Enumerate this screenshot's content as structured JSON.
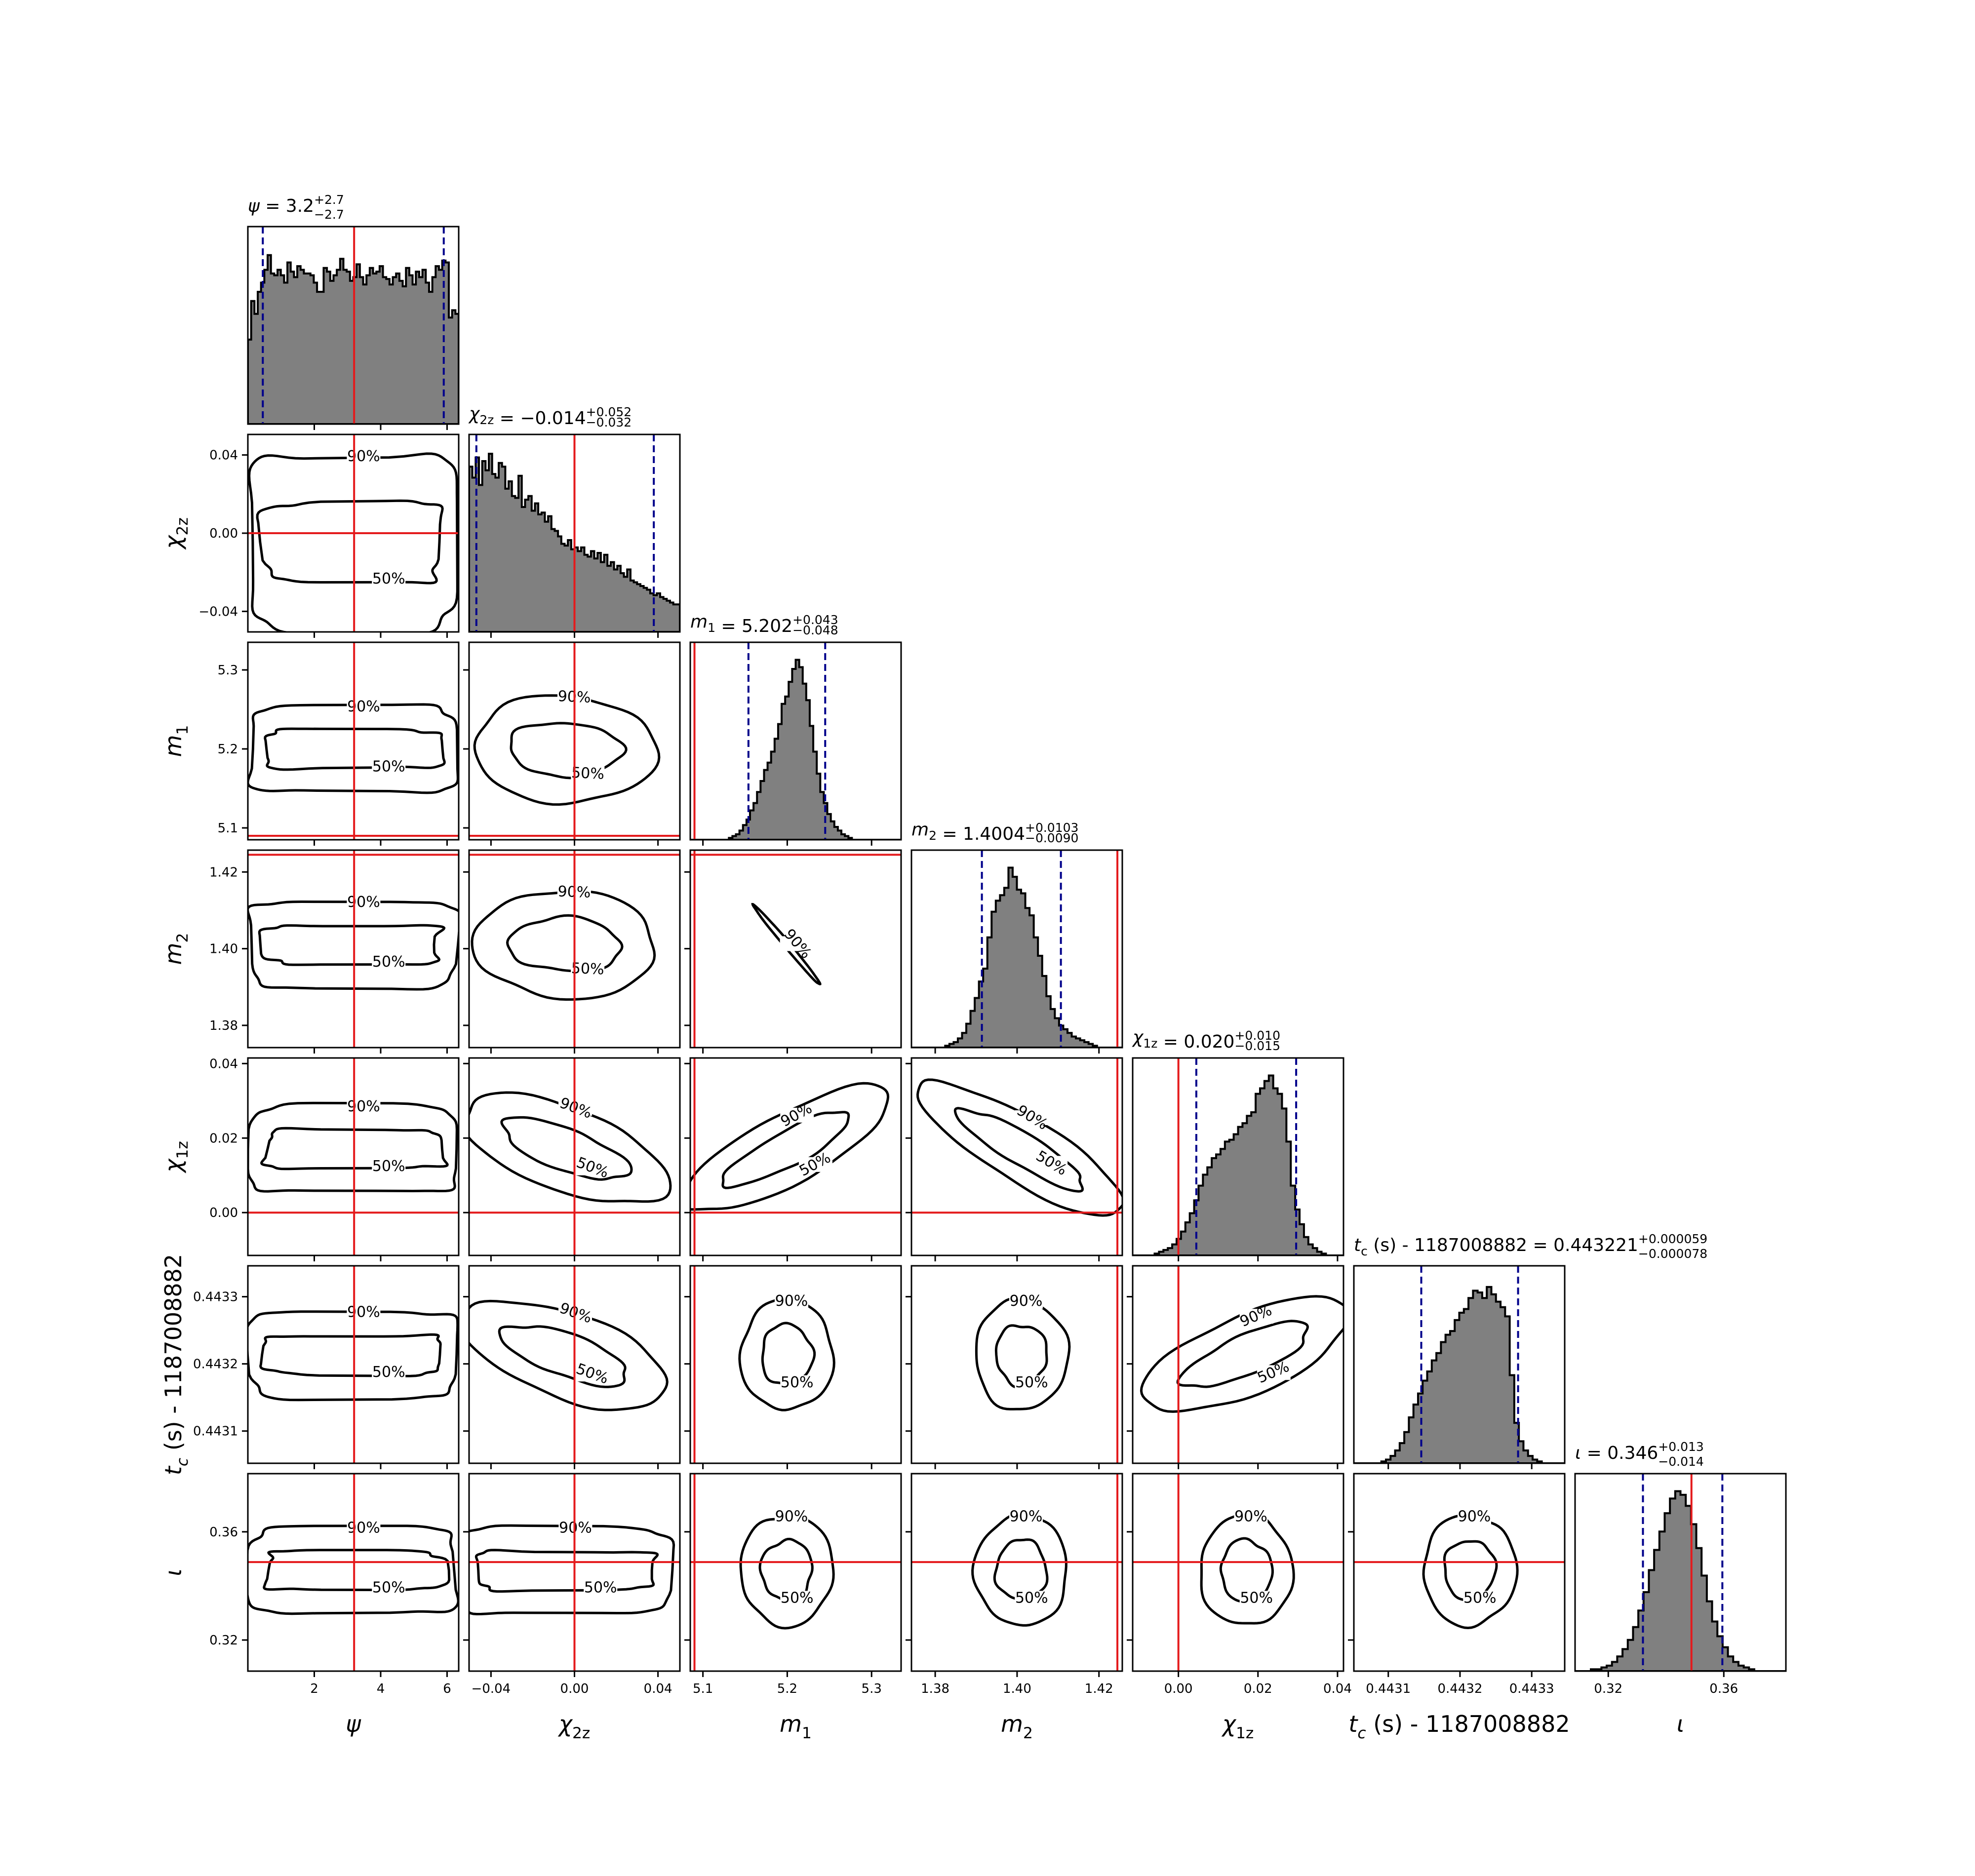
{
  "chart_data": {
    "type": "corner",
    "contour_levels": [
      "50%",
      "90%"
    ],
    "params": [
      {
        "key": "psi",
        "axis_label": "ψ",
        "title": {
          "lhs": "ψ",
          "eq": " = ",
          "value": "3.2",
          "plus": "+2.7",
          "minus": "−2.7"
        },
        "range": [
          0.0,
          6.35
        ],
        "ticks": [
          2,
          4,
          6
        ],
        "tick_labels": [
          "2",
          "4",
          "6"
        ],
        "injection": 3.2,
        "interval": [
          0.45,
          5.9
        ],
        "hist_values": [
          0.46,
          0.67,
          0.6,
          0.72,
          0.77,
          0.84,
          0.92,
          0.82,
          0.81,
          0.84,
          0.81,
          0.77,
          0.88,
          0.83,
          0.8,
          0.86,
          0.84,
          0.82,
          0.82,
          0.81,
          0.77,
          0.72,
          0.72,
          0.85,
          0.83,
          0.78,
          0.81,
          0.84,
          0.9,
          0.84,
          0.83,
          0.78,
          0.8,
          0.87,
          0.8,
          0.76,
          0.81,
          0.85,
          0.82,
          0.83,
          0.86,
          0.8,
          0.79,
          0.76,
          0.8,
          0.82,
          0.78,
          0.75,
          0.85,
          0.81,
          0.76,
          0.83,
          0.8,
          0.84,
          0.77,
          0.72,
          0.8,
          0.86,
          0.84,
          0.89,
          0.88,
          0.58,
          0.62,
          0.6
        ]
      },
      {
        "key": "chi2z",
        "axis_label": "χ2z",
        "title": {
          "lhs": "χ2z",
          "eq": " = ",
          "value": "−0.014",
          "plus": "+0.052",
          "minus": "−0.032"
        },
        "range": [
          -0.0505,
          0.0505
        ],
        "ticks": [
          -0.04,
          0.0,
          0.04
        ],
        "tick_labels": [
          "−0.04",
          "0.00",
          "0.04"
        ],
        "injection": 0.0,
        "interval": [
          -0.047,
          0.038
        ],
        "hist_values": [
          0.9,
          0.84,
          0.95,
          0.8,
          0.93,
          0.88,
          0.97,
          0.86,
          0.84,
          0.92,
          0.9,
          0.78,
          0.82,
          0.74,
          0.73,
          0.85,
          0.68,
          0.72,
          0.74,
          0.66,
          0.7,
          0.64,
          0.65,
          0.6,
          0.63,
          0.56,
          0.55,
          0.52,
          0.48,
          0.47,
          0.5,
          0.45,
          0.46,
          0.44,
          0.46,
          0.42,
          0.41,
          0.44,
          0.4,
          0.43,
          0.38,
          0.42,
          0.36,
          0.38,
          0.34,
          0.36,
          0.32,
          0.3,
          0.34,
          0.28,
          0.27,
          0.26,
          0.25,
          0.24,
          0.23,
          0.21,
          0.2,
          0.21,
          0.19,
          0.18,
          0.17,
          0.16,
          0.15,
          0.15
        ]
      },
      {
        "key": "m1",
        "axis_label": "m1",
        "title": {
          "lhs": "m1",
          "eq": " = ",
          "value": "5.202",
          "plus": "+0.043",
          "minus": "−0.048"
        },
        "range": [
          5.085,
          5.335
        ],
        "ticks": [
          5.1,
          5.2,
          5.3
        ],
        "tick_labels": [
          "5.1",
          "5.2",
          "5.3"
        ],
        "injection": 5.09,
        "interval": [
          5.154,
          5.245
        ],
        "hist_values": [
          0.0,
          0.0,
          0.0,
          0.0,
          0.0,
          0.0,
          0.0,
          0.0,
          0.0,
          0.0,
          0.0,
          0.01,
          0.02,
          0.03,
          0.05,
          0.08,
          0.11,
          0.16,
          0.2,
          0.26,
          0.32,
          0.38,
          0.42,
          0.48,
          0.55,
          0.63,
          0.74,
          0.78,
          0.86,
          0.93,
          0.98,
          0.94,
          0.85,
          0.76,
          0.62,
          0.48,
          0.36,
          0.26,
          0.2,
          0.14,
          0.1,
          0.07,
          0.05,
          0.03,
          0.02,
          0.01,
          0.0,
          0.0,
          0.0,
          0.0,
          0.0,
          0.0,
          0.0,
          0.0,
          0.0,
          0.0,
          0.0,
          0.0,
          0.0,
          0.0
        ]
      },
      {
        "key": "m2",
        "axis_label": "m2",
        "title": {
          "lhs": "m2",
          "eq": " = ",
          "value": "1.4004",
          "plus": "+0.0103",
          "minus": "−0.0090"
        },
        "range": [
          1.3742,
          1.4257
        ],
        "ticks": [
          1.38,
          1.4,
          1.42
        ],
        "tick_labels": [
          "1.38",
          "1.40",
          "1.42"
        ],
        "injection": 1.4245,
        "interval": [
          1.3914,
          1.4107
        ],
        "hist_values": [
          0.0,
          0.0,
          0.0,
          0.0,
          0.0,
          0.0,
          0.0,
          0.0,
          0.01,
          0.02,
          0.03,
          0.05,
          0.08,
          0.13,
          0.2,
          0.27,
          0.36,
          0.43,
          0.6,
          0.74,
          0.8,
          0.83,
          0.87,
          0.98,
          0.93,
          0.86,
          0.84,
          0.76,
          0.72,
          0.6,
          0.5,
          0.39,
          0.28,
          0.21,
          0.16,
          0.12,
          0.1,
          0.08,
          0.06,
          0.05,
          0.04,
          0.03,
          0.02,
          0.01,
          0.0,
          0.0,
          0.0,
          0.0,
          0.0,
          0.0
        ]
      },
      {
        "key": "chi1z",
        "axis_label": "χ1z",
        "title": {
          "lhs": "χ1z",
          "eq": " = ",
          "value": "0.020",
          "plus": "+0.010",
          "minus": "−0.015"
        },
        "range": [
          -0.0115,
          0.0415
        ],
        "ticks": [
          0.0,
          0.02,
          0.04
        ],
        "tick_labels": [
          "0.00",
          "0.02",
          "0.04"
        ],
        "injection": 0.0,
        "interval": [
          0.0045,
          0.0296
        ],
        "hist_values": [
          0.0,
          0.0,
          0.0,
          0.0,
          0.0,
          0.01,
          0.02,
          0.03,
          0.04,
          0.06,
          0.09,
          0.13,
          0.18,
          0.23,
          0.3,
          0.38,
          0.44,
          0.48,
          0.53,
          0.55,
          0.58,
          0.62,
          0.63,
          0.66,
          0.7,
          0.72,
          0.76,
          0.78,
          0.88,
          0.91,
          0.95,
          0.98,
          0.91,
          0.88,
          0.8,
          0.62,
          0.38,
          0.25,
          0.17,
          0.1,
          0.06,
          0.04,
          0.02,
          0.01,
          0.0,
          0.0,
          0.0,
          0.0
        ]
      },
      {
        "key": "tc",
        "axis_label": "tc (s) - 1187008882",
        "title": {
          "lhs": "tc (s) - 1187008882",
          "eq": " = ",
          "value": "0.443221",
          "plus": "+0.000059",
          "minus": "−0.000078"
        },
        "range": [
          0.443052,
          0.443346
        ],
        "ticks": [
          0.4431,
          0.4432,
          0.4433
        ],
        "tick_labels": [
          "0.4431",
          "0.4432",
          "0.4433"
        ],
        "injection": null,
        "interval": [
          0.443146,
          0.443281
        ],
        "hist_values": [
          0.0,
          0.0,
          0.0,
          0.0,
          0.0,
          0.0,
          0.01,
          0.02,
          0.04,
          0.07,
          0.11,
          0.17,
          0.25,
          0.32,
          0.38,
          0.45,
          0.5,
          0.56,
          0.6,
          0.66,
          0.7,
          0.72,
          0.78,
          0.82,
          0.84,
          0.9,
          0.94,
          0.93,
          0.9,
          0.96,
          0.92,
          0.88,
          0.85,
          0.8,
          0.48,
          0.22,
          0.12,
          0.07,
          0.04,
          0.02,
          0.01,
          0.0,
          0.0,
          0.0,
          0.0,
          0.0
        ]
      },
      {
        "key": "iota",
        "axis_label": "ι",
        "title": {
          "lhs": "ι",
          "eq": " = ",
          "value": "0.346",
          "plus": "+0.013",
          "minus": "−0.014"
        },
        "range": [
          0.3085,
          0.3815
        ],
        "ticks": [
          0.32,
          0.36
        ],
        "tick_labels": [
          "0.32",
          "0.36"
        ],
        "injection": 0.3488,
        "interval": [
          0.332,
          0.3595
        ],
        "hist_values": [
          0.0,
          0.0,
          0.0,
          0.01,
          0.01,
          0.02,
          0.03,
          0.05,
          0.08,
          0.12,
          0.17,
          0.24,
          0.33,
          0.43,
          0.55,
          0.66,
          0.76,
          0.86,
          0.94,
          0.98,
          0.96,
          0.9,
          0.8,
          0.67,
          0.52,
          0.38,
          0.27,
          0.19,
          0.13,
          0.08,
          0.05,
          0.03,
          0.02,
          0.01,
          0.0,
          0.0,
          0.0,
          0.0,
          0.0,
          0.0
        ]
      }
    ]
  }
}
